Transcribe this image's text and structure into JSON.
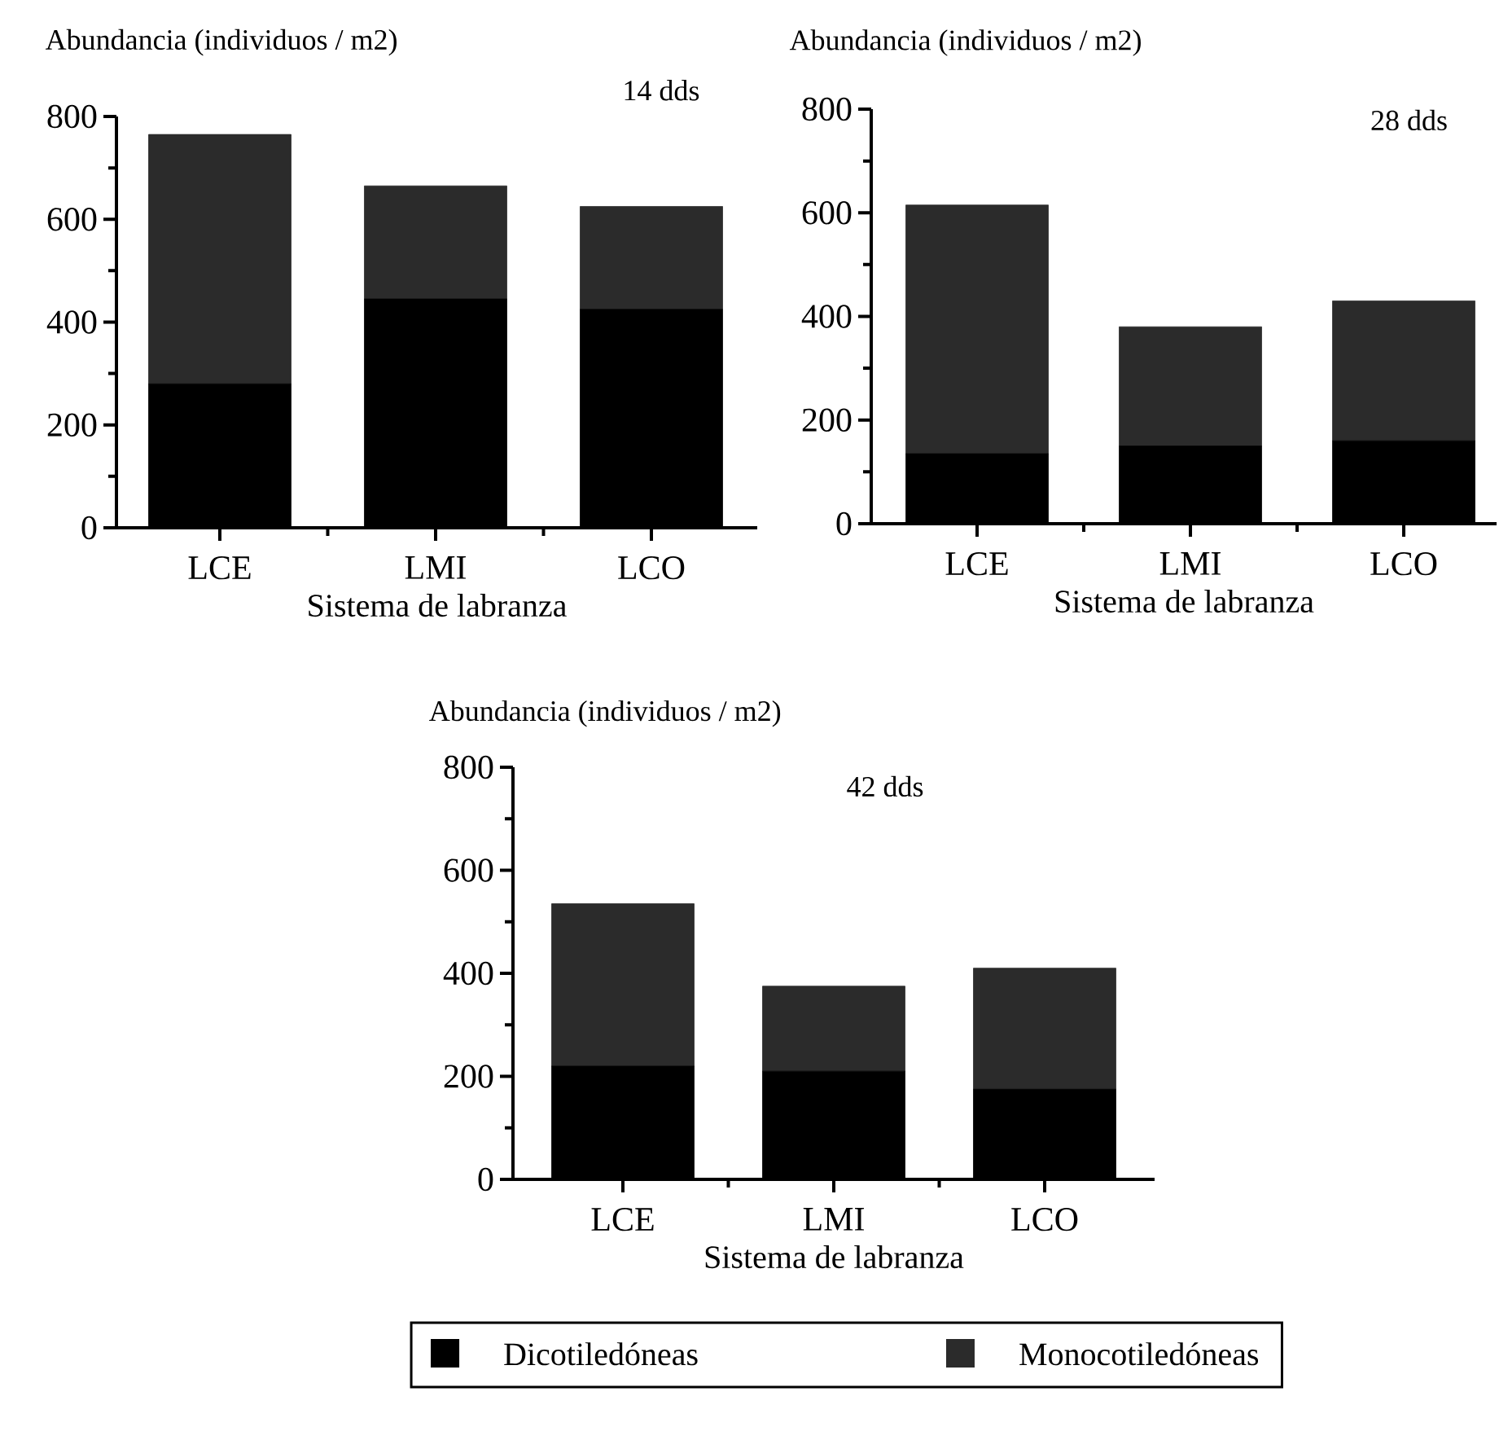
{
  "chart_data": [
    {
      "type": "bar",
      "title": "14 dds",
      "ylabel": "Abundancia (individuos / m2)",
      "xlabel": "Sistema de labranza",
      "categories": [
        "LCE",
        "LMI",
        "LCO"
      ],
      "stacked": true,
      "ylim": [
        0,
        800
      ],
      "yticks": [
        0,
        200,
        400,
        600,
        800
      ],
      "legend": false,
      "series": [
        {
          "color": "#000000",
          "values": [
            280,
            445,
            425
          ]
        },
        {
          "color": "#2b2b2b",
          "values": [
            485,
            220,
            200
          ]
        }
      ]
    },
    {
      "type": "bar",
      "title": "28 dds",
      "ylabel": "Abundancia (individuos / m2)",
      "xlabel": "Sistema de labranza",
      "categories": [
        "LCE",
        "LMI",
        "LCO"
      ],
      "stacked": true,
      "ylim": [
        0,
        800
      ],
      "yticks": [
        0,
        200,
        400,
        600,
        800
      ],
      "legend": false,
      "series": [
        {
          "color": "#000000",
          "values": [
            135,
            150,
            160
          ]
        },
        {
          "color": "#2b2b2b",
          "values": [
            480,
            230,
            270
          ]
        }
      ]
    },
    {
      "type": "bar",
      "title": "42 dds",
      "ylabel": "Abundancia (individuos / m2)",
      "xlabel": "Sistema de labranza",
      "categories": [
        "LCE",
        "LMI",
        "LCO"
      ],
      "stacked": true,
      "ylim": [
        0,
        800
      ],
      "yticks": [
        0,
        200,
        400,
        600,
        800
      ],
      "legend": "bottom",
      "series": [
        {
          "name": "Dicotiledóneas",
          "color": "#000000",
          "values": [
            220,
            210,
            175
          ]
        },
        {
          "name": "Monocotiledóneas",
          "color": "#2b2b2b",
          "values": [
            315,
            165,
            235
          ]
        }
      ]
    }
  ]
}
